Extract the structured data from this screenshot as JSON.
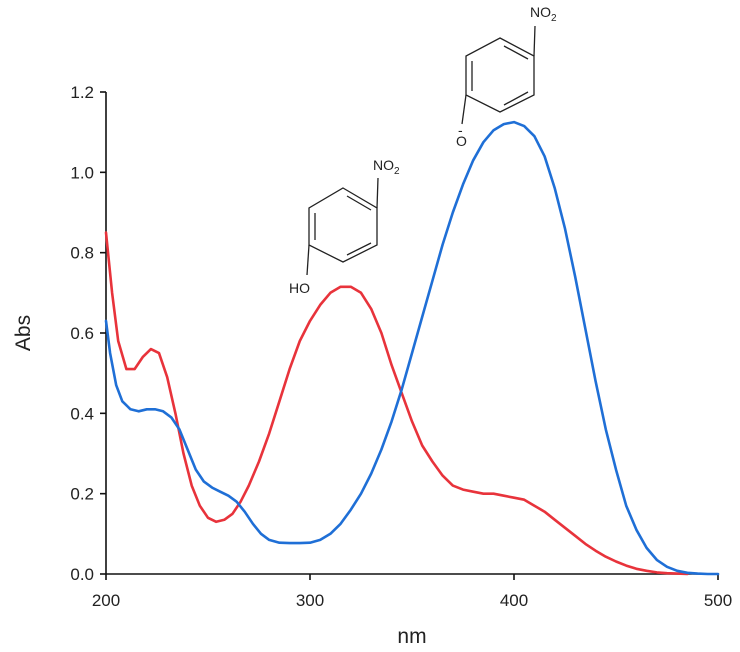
{
  "chart_data": {
    "type": "line",
    "title": "",
    "xlabel": "nm",
    "ylabel": "Abs",
    "xlim": [
      200,
      500
    ],
    "ylim": [
      0,
      1.2
    ],
    "x_ticks": [
      200,
      300,
      400,
      500
    ],
    "y_ticks": [
      "0.0",
      "0.2",
      "0.4",
      "0.6",
      "0.8",
      "1.0",
      "1.2"
    ],
    "grid": false,
    "series": [
      {
        "color": "#e8333b",
        "points": [
          [
            200,
            0.85
          ],
          [
            203,
            0.7
          ],
          [
            206,
            0.58
          ],
          [
            210,
            0.51
          ],
          [
            214,
            0.51
          ],
          [
            218,
            0.54
          ],
          [
            222,
            0.56
          ],
          [
            226,
            0.55
          ],
          [
            230,
            0.49
          ],
          [
            234,
            0.4
          ],
          [
            238,
            0.3
          ],
          [
            242,
            0.22
          ],
          [
            246,
            0.17
          ],
          [
            250,
            0.14
          ],
          [
            254,
            0.13
          ],
          [
            258,
            0.135
          ],
          [
            262,
            0.15
          ],
          [
            266,
            0.18
          ],
          [
            270,
            0.22
          ],
          [
            275,
            0.28
          ],
          [
            280,
            0.35
          ],
          [
            285,
            0.43
          ],
          [
            290,
            0.51
          ],
          [
            295,
            0.58
          ],
          [
            300,
            0.63
          ],
          [
            305,
            0.67
          ],
          [
            310,
            0.7
          ],
          [
            315,
            0.715
          ],
          [
            320,
            0.715
          ],
          [
            325,
            0.7
          ],
          [
            330,
            0.66
          ],
          [
            335,
            0.6
          ],
          [
            340,
            0.52
          ],
          [
            345,
            0.45
          ],
          [
            350,
            0.38
          ],
          [
            355,
            0.32
          ],
          [
            360,
            0.28
          ],
          [
            365,
            0.245
          ],
          [
            370,
            0.22
          ],
          [
            375,
            0.21
          ],
          [
            380,
            0.205
          ],
          [
            385,
            0.2
          ],
          [
            390,
            0.2
          ],
          [
            395,
            0.195
          ],
          [
            400,
            0.19
          ],
          [
            405,
            0.185
          ],
          [
            410,
            0.17
          ],
          [
            415,
            0.155
          ],
          [
            420,
            0.135
          ],
          [
            425,
            0.115
          ],
          [
            430,
            0.095
          ],
          [
            435,
            0.075
          ],
          [
            440,
            0.058
          ],
          [
            445,
            0.043
          ],
          [
            450,
            0.031
          ],
          [
            455,
            0.021
          ],
          [
            460,
            0.013
          ],
          [
            465,
            0.008
          ],
          [
            470,
            0.004
          ],
          [
            475,
            0.002
          ],
          [
            480,
            0.001
          ],
          [
            485,
            0.0
          ]
        ]
      },
      {
        "color": "#1f6fd6",
        "points": [
          [
            200,
            0.63
          ],
          [
            202,
            0.55
          ],
          [
            205,
            0.47
          ],
          [
            208,
            0.43
          ],
          [
            212,
            0.41
          ],
          [
            216,
            0.405
          ],
          [
            220,
            0.41
          ],
          [
            224,
            0.41
          ],
          [
            228,
            0.405
          ],
          [
            232,
            0.39
          ],
          [
            236,
            0.36
          ],
          [
            240,
            0.31
          ],
          [
            244,
            0.26
          ],
          [
            248,
            0.23
          ],
          [
            252,
            0.215
          ],
          [
            256,
            0.205
          ],
          [
            260,
            0.195
          ],
          [
            264,
            0.18
          ],
          [
            268,
            0.155
          ],
          [
            272,
            0.125
          ],
          [
            276,
            0.1
          ],
          [
            280,
            0.085
          ],
          [
            285,
            0.078
          ],
          [
            290,
            0.077
          ],
          [
            295,
            0.077
          ],
          [
            300,
            0.078
          ],
          [
            305,
            0.085
          ],
          [
            310,
            0.1
          ],
          [
            315,
            0.125
          ],
          [
            320,
            0.16
          ],
          [
            325,
            0.2
          ],
          [
            330,
            0.25
          ],
          [
            335,
            0.31
          ],
          [
            340,
            0.38
          ],
          [
            345,
            0.46
          ],
          [
            350,
            0.55
          ],
          [
            355,
            0.64
          ],
          [
            360,
            0.73
          ],
          [
            365,
            0.82
          ],
          [
            370,
            0.9
          ],
          [
            375,
            0.97
          ],
          [
            380,
            1.03
          ],
          [
            385,
            1.075
          ],
          [
            390,
            1.105
          ],
          [
            395,
            1.12
          ],
          [
            400,
            1.125
          ],
          [
            405,
            1.115
          ],
          [
            410,
            1.09
          ],
          [
            415,
            1.04
          ],
          [
            420,
            0.96
          ],
          [
            425,
            0.86
          ],
          [
            430,
            0.74
          ],
          [
            435,
            0.61
          ],
          [
            440,
            0.48
          ],
          [
            445,
            0.36
          ],
          [
            450,
            0.26
          ],
          [
            455,
            0.17
          ],
          [
            460,
            0.11
          ],
          [
            465,
            0.065
          ],
          [
            470,
            0.035
          ],
          [
            475,
            0.018
          ],
          [
            480,
            0.008
          ],
          [
            485,
            0.003
          ],
          [
            490,
            0.001
          ],
          [
            495,
            0.0
          ],
          [
            500,
            0.0
          ]
        ]
      }
    ],
    "annotations": {
      "phenol": {
        "top_label": "NO",
        "top_sub": "2",
        "bottom_label": "HO"
      },
      "phenolate": {
        "top_label": "NO",
        "top_sub": "2",
        "bottom_label": "O",
        "charge": "-"
      }
    }
  }
}
